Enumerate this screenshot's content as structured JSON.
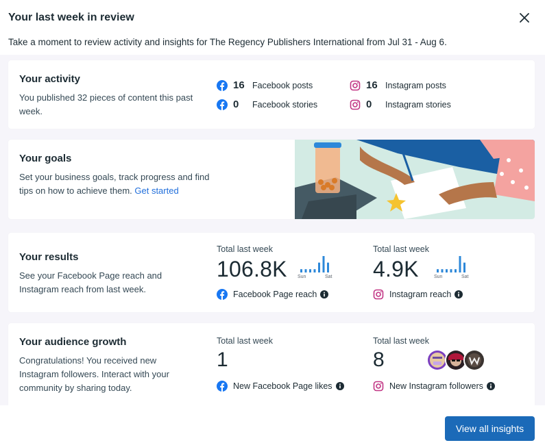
{
  "dialog": {
    "title": "Your last week in review",
    "subtitle": "Take a moment to review activity and insights for The Regency Publishers International from Jul 31 - Aug 6.",
    "close_icon": "close-icon",
    "footer_button": "View all insights"
  },
  "activity": {
    "title": "Your activity",
    "description": "You published 32 pieces of content this past week.",
    "stats": {
      "fb_posts": {
        "value": "16",
        "label": "Facebook posts"
      },
      "fb_stories": {
        "value": "0",
        "label": "Facebook stories"
      },
      "ig_posts": {
        "value": "16",
        "label": "Instagram posts"
      },
      "ig_stories": {
        "value": "0",
        "label": "Instagram stories"
      }
    }
  },
  "goals": {
    "title": "Your goals",
    "description": "Set your business goals, track progress and find tips on how to achieve them. ",
    "link": "Get started"
  },
  "results": {
    "title": "Your results",
    "description": "See your Facebook Page reach and Instagram reach from last week.",
    "facebook": {
      "caption": "Total last week",
      "value": "106.8K",
      "label": "Facebook Page reach",
      "spark_start": "Sun",
      "spark_end": "Sat",
      "spark_values": [
        1,
        1,
        1,
        1,
        3,
        5,
        3
      ]
    },
    "instagram": {
      "caption": "Total last week",
      "value": "4.9K",
      "label": "Instagram reach",
      "spark_start": "Sun",
      "spark_end": "Sat",
      "spark_values": [
        1,
        1,
        1,
        1,
        1,
        5,
        3
      ]
    }
  },
  "audience": {
    "title": "Your audience growth",
    "description": "Congratulations! You received new Instagram followers. Interact with your community by sharing today.",
    "facebook": {
      "caption": "Total last week",
      "value": "1",
      "label": "New Facebook Page likes"
    },
    "instagram": {
      "caption": "Total last week",
      "value": "8",
      "label": "New Instagram followers"
    }
  },
  "colors": {
    "facebook_blue": "#1877f2",
    "instagram_pink": "#c13584",
    "button_blue": "#1b6ab8",
    "spark_blue": "#2d88d9"
  }
}
